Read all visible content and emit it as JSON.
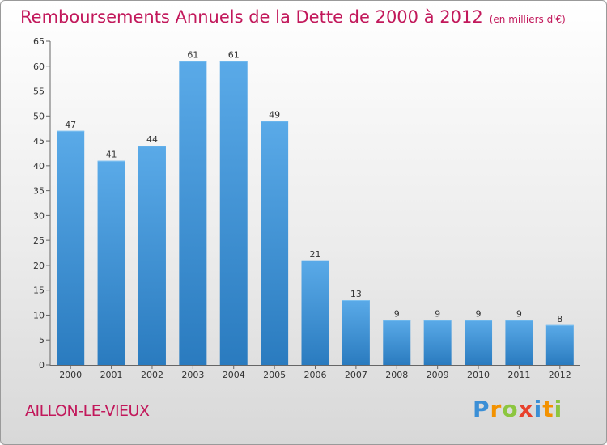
{
  "header": {
    "title": "Remboursements Annuels de la Dette de 2000 à 2012",
    "subtitle": "(en milliers d'€)"
  },
  "footer": {
    "commune": "AILLON-LE-VIEUX",
    "logo_text": "Proxiti"
  },
  "colors": {
    "bar_top": "#5aaae8",
    "bar_bottom": "#2a7bbf",
    "title": "#c2185b"
  },
  "chart_data": {
    "type": "bar",
    "title": "Remboursements Annuels de la Dette de 2000 à 2012",
    "subtitle": "(en milliers d'€)",
    "categories": [
      "2000",
      "2001",
      "2002",
      "2003",
      "2004",
      "2005",
      "2006",
      "2007",
      "2008",
      "2009",
      "2010",
      "2011",
      "2012"
    ],
    "values": [
      47,
      41,
      44,
      61,
      61,
      49,
      21,
      13,
      9,
      9,
      9,
      9,
      8
    ],
    "ylim": [
      0,
      65
    ],
    "yticks": [
      0,
      5,
      10,
      15,
      20,
      25,
      30,
      35,
      40,
      45,
      50,
      55,
      60,
      65
    ],
    "grid": false,
    "data_labels": true
  }
}
